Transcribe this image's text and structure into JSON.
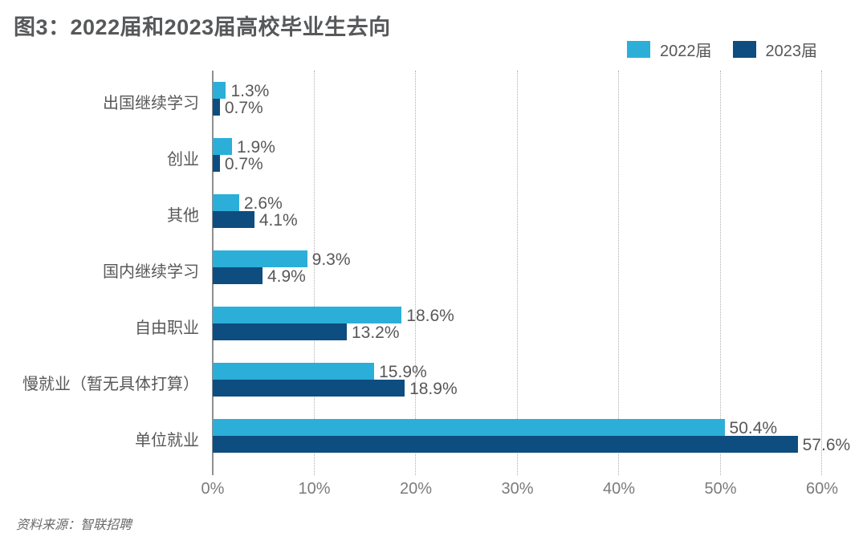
{
  "title": "图3：2022届和2023届高校毕业生去向",
  "source": "资料来源：智联招聘",
  "legend": [
    {
      "label": "2022届",
      "color": "#2bafd9"
    },
    {
      "label": "2023届",
      "color": "#0e4d7f"
    }
  ],
  "colors": {
    "series_2022": "#2bafd9",
    "series_2023": "#0e4d7f",
    "title_text": "#57585a",
    "label_text": "#595757",
    "tick_text": "#7b7b7b",
    "gridline": "#b0b0b0",
    "axis_line": "#8f8f8f",
    "background": "#ffffff"
  },
  "chart_data": {
    "type": "bar",
    "orientation": "horizontal",
    "title": "图3：2022届和2023届高校毕业生去向",
    "categories_top_to_bottom": [
      "出国继续学习",
      "创业",
      "其他",
      "国内继续学习",
      "自由职业",
      "慢就业（暂无具体打算）",
      "单位就业"
    ],
    "series": [
      {
        "name": "2022届",
        "color": "#2bafd9",
        "values": [
          1.3,
          1.9,
          2.6,
          9.3,
          18.6,
          15.9,
          50.4
        ]
      },
      {
        "name": "2023届",
        "color": "#0e4d7f",
        "values": [
          0.7,
          0.7,
          4.1,
          4.9,
          13.2,
          18.9,
          57.6
        ]
      }
    ],
    "value_label_suffix": "%",
    "x_ticks": [
      "0%",
      "10%",
      "20%",
      "30%",
      "40%",
      "50%",
      "60%"
    ],
    "xlim": [
      0,
      60
    ],
    "grid": "dotted-vertical",
    "legend_position": "top-right",
    "value_labels": "end-of-bar"
  }
}
